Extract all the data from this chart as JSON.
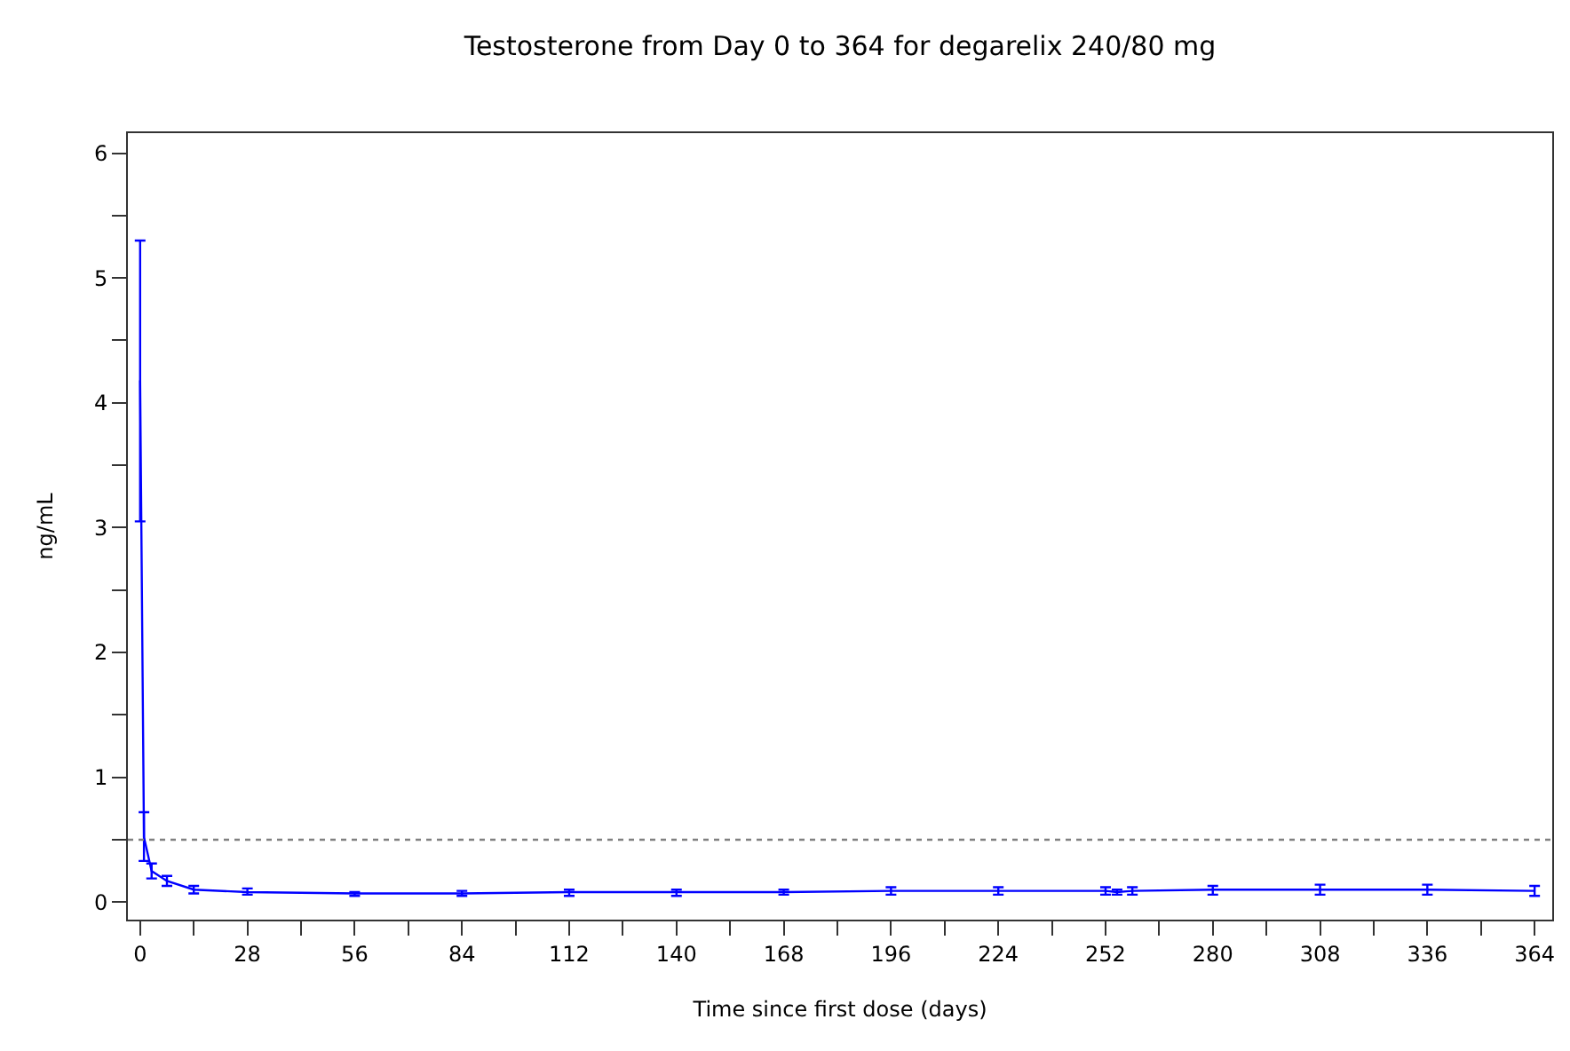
{
  "chart_data": {
    "type": "line",
    "title": "Testosterone from Day 0 to 364 for degarelix 240/80 mg",
    "xlabel": "Time since first dose (days)",
    "ylabel": "ng/mL",
    "x": [
      0,
      1,
      3,
      7,
      14,
      28,
      56,
      84,
      112,
      140,
      168,
      196,
      224,
      252,
      255,
      259,
      280,
      308,
      336,
      364
    ],
    "series": [
      {
        "color": "#0000ff",
        "values": [
          4.18,
          0.52,
          0.25,
          0.17,
          0.1,
          0.08,
          0.07,
          0.07,
          0.08,
          0.08,
          0.08,
          0.09,
          0.09,
          0.09,
          0.08,
          0.09,
          0.1,
          0.1,
          0.1,
          0.09
        ],
        "errors": [
          [
            3.05,
            5.3
          ],
          [
            0.33,
            0.72
          ],
          [
            0.19,
            0.31
          ],
          [
            0.13,
            0.21
          ],
          [
            0.07,
            0.13
          ],
          [
            0.06,
            0.11
          ],
          [
            0.05,
            0.08
          ],
          [
            0.05,
            0.09
          ],
          [
            0.05,
            0.1
          ],
          [
            0.05,
            0.1
          ],
          [
            0.06,
            0.1
          ],
          [
            0.06,
            0.12
          ],
          [
            0.06,
            0.12
          ],
          [
            0.06,
            0.12
          ],
          [
            0.06,
            0.1
          ],
          [
            0.06,
            0.12
          ],
          [
            0.06,
            0.13
          ],
          [
            0.06,
            0.14
          ],
          [
            0.06,
            0.14
          ],
          [
            0.05,
            0.13
          ]
        ]
      }
    ],
    "xlim": [
      -3.2,
      368.6
    ],
    "ylim": [
      -0.14,
      6.16
    ],
    "xticks": [
      0,
      {
        "value": 14,
        "label": null
      },
      28,
      {
        "value": 42,
        "label": null
      },
      56,
      {
        "value": 70,
        "label": null
      },
      84,
      {
        "value": 98,
        "label": null
      },
      112,
      {
        "value": 126,
        "label": null
      },
      140,
      {
        "value": 154,
        "label": null
      },
      168,
      {
        "value": 182,
        "label": null
      },
      196,
      {
        "value": 210,
        "label": null
      },
      224,
      {
        "value": 238,
        "label": null
      },
      252,
      {
        "value": 266,
        "label": null
      },
      280,
      {
        "value": 294,
        "label": null
      },
      308,
      {
        "value": 322,
        "label": null
      },
      336,
      {
        "value": 350,
        "label": null
      },
      364
    ],
    "yticks": [
      0,
      {
        "value": 0.5,
        "label": null
      },
      1,
      {
        "value": 1.5,
        "label": null
      },
      2,
      {
        "value": 2.5,
        "label": null
      },
      3,
      {
        "value": 3.5,
        "label": null
      },
      4,
      {
        "value": 4.5,
        "label": null
      },
      5,
      {
        "value": 5.5,
        "label": null
      },
      6
    ],
    "ref_lines": [
      {
        "axis": "y",
        "value": 0.5,
        "color": "#808080",
        "line_style": "dotted"
      }
    ],
    "grid": false,
    "line_style": "solid"
  }
}
